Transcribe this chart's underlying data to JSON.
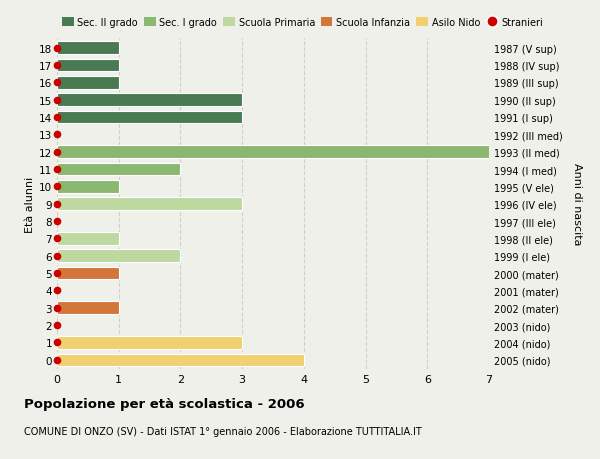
{
  "ages": [
    18,
    17,
    16,
    15,
    14,
    13,
    12,
    11,
    10,
    9,
    8,
    7,
    6,
    5,
    4,
    3,
    2,
    1,
    0
  ],
  "years": [
    "1987 (V sup)",
    "1988 (IV sup)",
    "1989 (III sup)",
    "1990 (II sup)",
    "1991 (I sup)",
    "1992 (III med)",
    "1993 (II med)",
    "1994 (I med)",
    "1995 (V ele)",
    "1996 (IV ele)",
    "1997 (III ele)",
    "1998 (II ele)",
    "1999 (I ele)",
    "2000 (mater)",
    "2001 (mater)",
    "2002 (mater)",
    "2003 (nido)",
    "2004 (nido)",
    "2005 (nido)"
  ],
  "bar_values": [
    1,
    1,
    1,
    3,
    3,
    0,
    7,
    2,
    1,
    3,
    0,
    1,
    2,
    1,
    0,
    1,
    0,
    3,
    4
  ],
  "bar_colors": [
    "#4a7a52",
    "#4a7a52",
    "#4a7a52",
    "#4a7a52",
    "#4a7a52",
    "#4a7a52",
    "#8ab870",
    "#8ab870",
    "#8ab870",
    "#bdd9a0",
    "#bdd9a0",
    "#bdd9a0",
    "#bdd9a0",
    "#d2763a",
    "#d2763a",
    "#d2763a",
    "#f0d070",
    "#f0d070",
    "#f0d070"
  ],
  "stranieri_color": "#cc0000",
  "legend_labels": [
    "Sec. II grado",
    "Sec. I grado",
    "Scuola Primaria",
    "Scuola Infanzia",
    "Asilo Nido",
    "Stranieri"
  ],
  "legend_colors": [
    "#4a7a52",
    "#8ab870",
    "#bdd9a0",
    "#d2763a",
    "#f0d070",
    "#cc0000"
  ],
  "title": "Popolazione per età scolastica - 2006",
  "subtitle": "COMUNE DI ONZO (SV) - Dati ISTAT 1° gennaio 2006 - Elaborazione TUTTITALIA.IT",
  "ylabel_left": "Età alunni",
  "ylabel_right": "Anni di nascita",
  "xlim": [
    0,
    7
  ],
  "background_color": "#f0f0eb",
  "grid_color": "#d0d0c8"
}
